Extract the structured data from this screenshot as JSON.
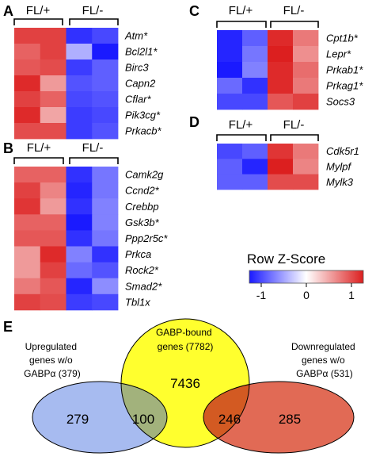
{
  "colors": {
    "high": "#dc1f1f",
    "mid": "#ffffff",
    "low": "#1a1aff",
    "venn_left": "#a7bbf0",
    "venn_center": "#ffff2e",
    "venn_right": "#e16a55",
    "venn_left_overlap": "#a2b27c",
    "venn_right_overlap": "#d35a22"
  },
  "panels": [
    {
      "letter": "A",
      "groups": [
        "FL/+",
        "FL/-"
      ],
      "genes": [
        "Atm*",
        "Bcl2l1*",
        "Birc3",
        "Capn2",
        "Cflar*",
        "Pik3cg*",
        "Prkacb*"
      ],
      "values": [
        [
          0.85,
          0.85,
          -0.9,
          -0.8
        ],
        [
          0.7,
          0.85,
          -0.35,
          -1.0
        ],
        [
          0.75,
          0.8,
          -0.85,
          -0.7
        ],
        [
          0.95,
          0.45,
          -0.75,
          -0.7
        ],
        [
          0.85,
          0.7,
          -0.8,
          -0.75
        ],
        [
          0.95,
          0.4,
          -0.85,
          -0.8
        ],
        [
          0.8,
          0.8,
          -0.85,
          -0.75
        ]
      ]
    },
    {
      "letter": "B",
      "groups": [
        "FL/+",
        "FL/-"
      ],
      "genes": [
        "Camk2g",
        "Ccnd2*",
        "Crebbp",
        "Gsk3b*",
        "Ppp2r5c*",
        "Prkca",
        "Rock2*",
        "Smad2*",
        "Tbl1x"
      ],
      "values": [
        [
          0.7,
          0.7,
          -0.9,
          -0.6
        ],
        [
          0.85,
          0.55,
          -0.95,
          -0.6
        ],
        [
          0.9,
          0.45,
          -0.9,
          -0.55
        ],
        [
          0.7,
          0.7,
          -1.0,
          -0.55
        ],
        [
          0.75,
          0.75,
          -0.9,
          -0.6
        ],
        [
          0.45,
          0.95,
          -0.55,
          -0.9
        ],
        [
          0.45,
          0.85,
          -0.65,
          -0.75
        ],
        [
          0.6,
          0.75,
          -0.95,
          -0.5
        ],
        [
          0.85,
          0.8,
          -0.85,
          -0.8
        ]
      ]
    },
    {
      "letter": "C",
      "groups": [
        "FL/+",
        "FL/-"
      ],
      "genes": [
        "Cpt1b*",
        "Lepr*",
        "Prkab1*",
        "Prkag1*",
        "Socs3"
      ],
      "values": [
        [
          -0.95,
          -0.7,
          0.95,
          0.6
        ],
        [
          -0.95,
          -0.6,
          1.0,
          0.5
        ],
        [
          -1.0,
          -0.55,
          0.95,
          0.65
        ],
        [
          -0.65,
          -0.9,
          0.95,
          0.6
        ],
        [
          -0.8,
          -0.8,
          0.75,
          0.85
        ]
      ]
    },
    {
      "letter": "D",
      "groups": [
        "FL/+",
        "FL/-"
      ],
      "genes": [
        "Cdk5r1",
        "Mylpf",
        "Mylk3"
      ],
      "values": [
        [
          -0.8,
          -0.7,
          0.9,
          0.6
        ],
        [
          -0.7,
          -0.95,
          1.0,
          0.55
        ],
        [
          -0.7,
          -0.7,
          0.8,
          0.8
        ]
      ]
    }
  ],
  "scale": {
    "title": "Row Z-Score",
    "ticks": [
      "-1",
      "0",
      "1"
    ]
  },
  "venn": {
    "letter": "E",
    "left_label": [
      "Upregulated",
      "genes w/o",
      "GABPα (379)"
    ],
    "center_label": [
      "GABP-bound",
      "genes (7782)"
    ],
    "right_label": [
      "Downregulated",
      "genes w/o",
      "GABPα (531)"
    ],
    "left_only": "279",
    "left_overlap": "100",
    "center_only": "7436",
    "right_overlap": "246",
    "right_only": "285"
  }
}
